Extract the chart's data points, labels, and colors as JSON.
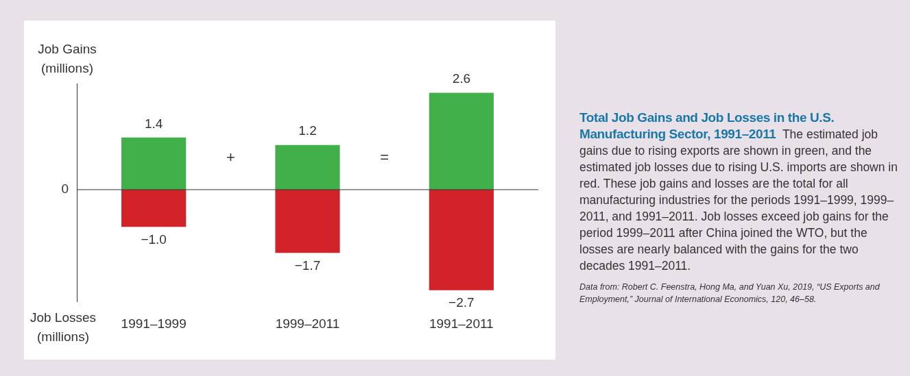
{
  "chart_data": {
    "type": "bar",
    "title": "Total Job Gains and Job Losses in the U.S. Manufacturing Sector, 1991–2011",
    "subtitle": "The estimated job gains due to rising exports are shown in green, and the estimated job losses due to rising U.S. imports are shown in red. These job gains and losses are the total for all manufacturing industries for the periods 1991–1999, 1999–2011, and 1991–2011. Job losses exceed job gains for the period 1999–2011 after China joined the WTO, but the losses are nearly balanced with the gains for the two decades 1991–2011.",
    "ylabel": "Job Gains (millions)",
    "categories": [
      "1991–1999",
      "1999–2011",
      "1991–2011"
    ],
    "series": [
      {
        "color": "#41b04b",
        "values": [
          1.4,
          1.2,
          2.6
        ],
        "value_labels": [
          "1.4",
          "1.2",
          "2.6"
        ]
      },
      {
        "color": "#d2232a",
        "values": [
          -1.0,
          -1.7,
          -2.7
        ],
        "value_labels": [
          "−1.0",
          "−1.7",
          "−2.7"
        ]
      }
    ],
    "stacked": true,
    "ylim": [
      -3,
      2.85
    ],
    "grid": false,
    "legend": false,
    "annotations": [
      "0",
      "+",
      "=",
      "Job Losses (millions)",
      "Data from: Robert C. Feenstra, Hong Ma, and Yuan Xu, 2019, “US Exports and Employment,” Journal of International Economics, 120, 46–58."
    ]
  }
}
